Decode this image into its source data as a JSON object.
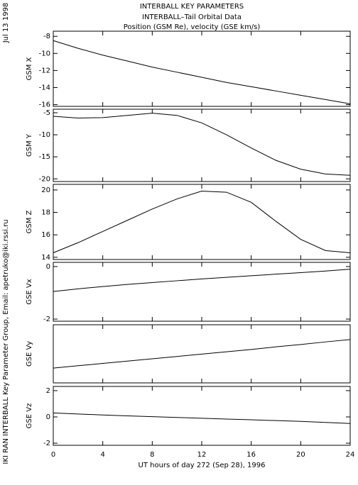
{
  "header": {
    "title_lines": [
      "INTERBALL KEY PARAMETERS",
      "INTERBALL–Tail Orbital Data",
      "Position (GSM Re), velocity (GSE km/s)"
    ],
    "date": "Jul 13 1998",
    "credit": "IKI RAN INTERBALL Key Parameter Group, Email: apetruko@iki.rssi.ru"
  },
  "chart_data": [
    {
      "type": "line",
      "ylabel": "GSM X",
      "x": [
        0,
        2,
        4,
        6,
        8,
        10,
        12,
        14,
        16,
        18,
        20,
        22,
        24
      ],
      "values": [
        -8.5,
        -9.4,
        -10.2,
        -10.9,
        -11.6,
        -12.2,
        -12.8,
        -13.4,
        -13.9,
        -14.4,
        -14.9,
        -15.4,
        -15.9
      ],
      "xlim": [
        0,
        24
      ],
      "ylim": [
        -16.2,
        -7.4
      ],
      "yticks": [
        -8,
        -10,
        -12,
        -14,
        -16
      ],
      "color": "#000000"
    },
    {
      "type": "line",
      "ylabel": "GSM Y",
      "x": [
        0,
        2,
        4,
        6,
        8,
        10,
        12,
        14,
        16,
        18,
        20,
        22,
        24
      ],
      "values": [
        -5.8,
        -6.2,
        -6.1,
        -5.6,
        -5.1,
        -5.6,
        -7.3,
        -10.0,
        -13.0,
        -15.8,
        -17.8,
        -18.9,
        -19.2
      ],
      "xlim": [
        0,
        24
      ],
      "ylim": [
        -20.6,
        -4.2
      ],
      "yticks": [
        -5,
        -10,
        -15,
        -20
      ],
      "color": "#000000"
    },
    {
      "type": "line",
      "ylabel": "GSM Z",
      "x": [
        0,
        2,
        4,
        6,
        8,
        10,
        12,
        14,
        16,
        18,
        20,
        22,
        24
      ],
      "values": [
        14.4,
        15.3,
        16.3,
        17.3,
        18.3,
        19.2,
        19.9,
        19.8,
        18.9,
        17.2,
        15.6,
        14.6,
        14.4
      ],
      "xlim": [
        0,
        24
      ],
      "ylim": [
        13.8,
        20.5
      ],
      "yticks": [
        20,
        18,
        16,
        14
      ],
      "color": "#000000"
    },
    {
      "type": "line",
      "ylabel": "GSE Vx",
      "x": [
        0,
        2,
        4,
        6,
        8,
        10,
        12,
        14,
        16,
        18,
        20,
        22,
        24
      ],
      "values": [
        -0.95,
        -0.85,
        -0.76,
        -0.68,
        -0.61,
        -0.54,
        -0.47,
        -0.41,
        -0.35,
        -0.29,
        -0.23,
        -0.17,
        -0.1
      ],
      "xlim": [
        0,
        24
      ],
      "ylim": [
        -2.08,
        0.16
      ],
      "yticks": [
        0,
        -2
      ],
      "color": "#000000"
    },
    {
      "type": "line",
      "ylabel": "GSE Vy",
      "x": [
        0,
        2,
        4,
        6,
        8,
        10,
        12,
        14,
        16,
        18,
        20,
        22,
        24
      ],
      "values": [
        -1.49,
        -1.41,
        -1.33,
        -1.25,
        -1.17,
        -1.09,
        -1.01,
        -0.93,
        -0.85,
        -0.76,
        -0.68,
        -0.59,
        -0.51
      ],
      "xlim": [
        0,
        24
      ],
      "ylim": [
        -2,
        0
      ],
      "color": "#000000"
    },
    {
      "type": "line",
      "ylabel": "GSE Vz",
      "x": [
        0,
        2,
        4,
        6,
        8,
        10,
        12,
        14,
        16,
        18,
        20,
        22,
        24
      ],
      "values": [
        0.3,
        0.22,
        0.15,
        0.08,
        0.02,
        -0.04,
        -0.1,
        -0.16,
        -0.22,
        -0.28,
        -0.34,
        -0.42,
        -0.5
      ],
      "xlim": [
        0,
        24
      ],
      "ylim": [
        -2.16,
        2.32
      ],
      "yticks": [
        2,
        0,
        -2
      ],
      "xticks": [
        0,
        4,
        8,
        12,
        16,
        20,
        24
      ],
      "xlabel": "UT hours of day 272 (Sep 28), 1996",
      "color": "#000000"
    }
  ]
}
